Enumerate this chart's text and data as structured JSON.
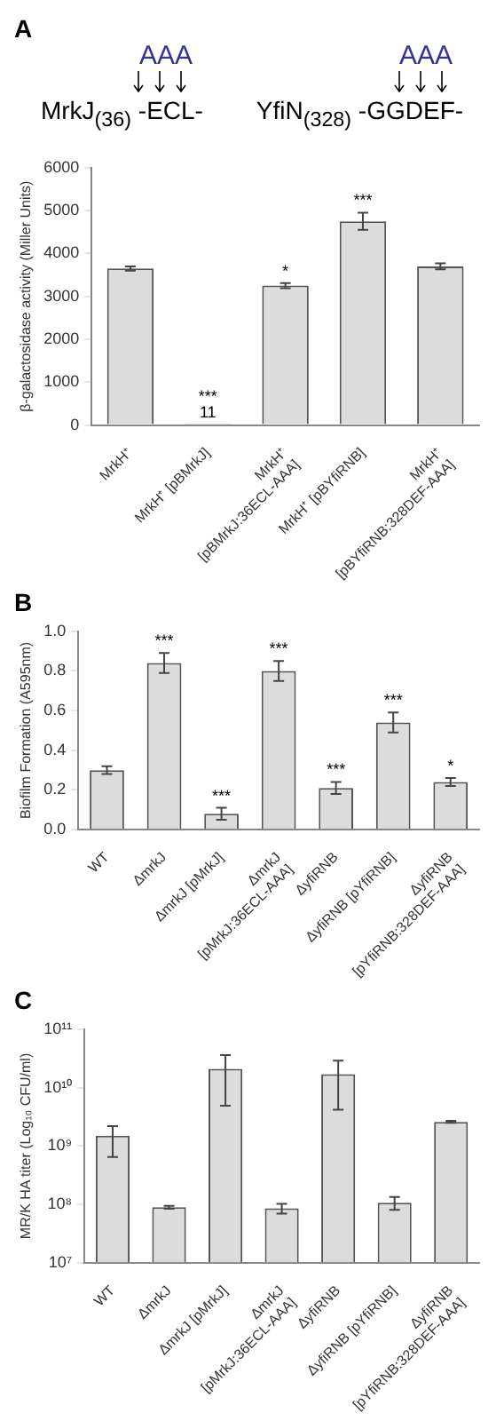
{
  "chart_data": [
    {
      "type": "bar",
      "title": "A",
      "annotations": [
        "AAA",
        "MrkJ$_{(36)}$ -ECL-",
        "AAA",
        "YfiN$_{(328)}$ -GGDEF-"
      ],
      "ylabel": "β-galactosidase activity (Miller Units)",
      "categories": [
        "MrkH⁺",
        "MrkH⁺ [pBMrkJ]",
        "MrkH⁺\n[pBMrkJ:36ECL-AAA]",
        "MrkH⁺ [pBYfiRNB]",
        "MrkH⁺\n[pBYfiRNB:328DEF-AAA]"
      ],
      "values": [
        3650,
        11,
        3250,
        4750,
        3700
      ],
      "errors": [
        50,
        null,
        60,
        200,
        70
      ],
      "value_labels": [
        null,
        "***\n11",
        "*",
        "***",
        null
      ],
      "color": "#dcdcdc",
      "ylim": [
        0,
        6000
      ],
      "yticks": [
        0,
        1000,
        2000,
        3000,
        4000,
        5000,
        6000
      ],
      "grid": false
    },
    {
      "type": "bar",
      "title": "B",
      "ylabel": "Biofilm Formation (A595nm)",
      "categories": [
        "WT",
        "ΔmrkJ",
        "ΔmrkJ [pMrkJ]",
        "ΔmrkJ\n[pMrkJ:36ECL-AAA]",
        "ΔyfiRNB",
        "ΔyfiRNB [pYfiRNB]",
        "ΔyfiRNB\n[pYfiRNB:328DEF-AAA]"
      ],
      "values": [
        0.3,
        0.84,
        0.08,
        0.8,
        0.21,
        0.54,
        0.24
      ],
      "errors": [
        0.02,
        0.05,
        0.03,
        0.05,
        0.03,
        0.05,
        0.02
      ],
      "value_labels": [
        null,
        "***",
        "***",
        "***",
        "***",
        "***",
        "*"
      ],
      "color": "#dcdcdc",
      "ylim": [
        0,
        1
      ],
      "yticks": [
        {
          "value": 0,
          "label": "0.0"
        },
        0.2,
        0.4,
        0.6,
        0.8,
        {
          "value": 1,
          "label": "1.0"
        }
      ],
      "grid": false
    },
    {
      "type": "bar",
      "title": "C",
      "ylabel": "MR/K HA titer (Log₁₀ CFU/ml)",
      "categories": [
        "WT",
        "ΔmrkJ",
        "ΔmrkJ [pMrkJ]",
        "ΔmrkJ\n[pMrkJ:36ECL-AAA]",
        "ΔyfiRNB",
        "ΔyfiRNB [pYfiRNB]",
        "ΔyfiRNB\n[pYfiRNB:328DEF-AAA]"
      ],
      "values": [
        1500000000,
        90000000,
        21000000000,
        86000000,
        17000000000,
        107000000,
        2600000000
      ],
      "errors": [
        [
          650000000,
          2200000000
        ],
        [
          85000000,
          95000000
        ],
        [
          4900000000,
          36000000000
        ],
        [
          70000000,
          103000000
        ],
        [
          4200000000,
          29000000000
        ],
        [
          81000000,
          135000000
        ],
        [
          2500000000,
          2700000000
        ]
      ],
      "color": "#dcdcdc",
      "log": "y",
      "ylim": [
        10000000,
        100000000000
      ],
      "yticks": [
        {
          "value": 10000000,
          "label": "10⁷"
        },
        {
          "value": 100000000,
          "label": "10⁸"
        },
        {
          "value": 1000000000,
          "label": "10⁹"
        },
        {
          "value": 10000000000,
          "label": "10¹⁰"
        },
        {
          "value": 100000000000,
          "label": "10¹¹"
        }
      ],
      "grid": false
    }
  ]
}
